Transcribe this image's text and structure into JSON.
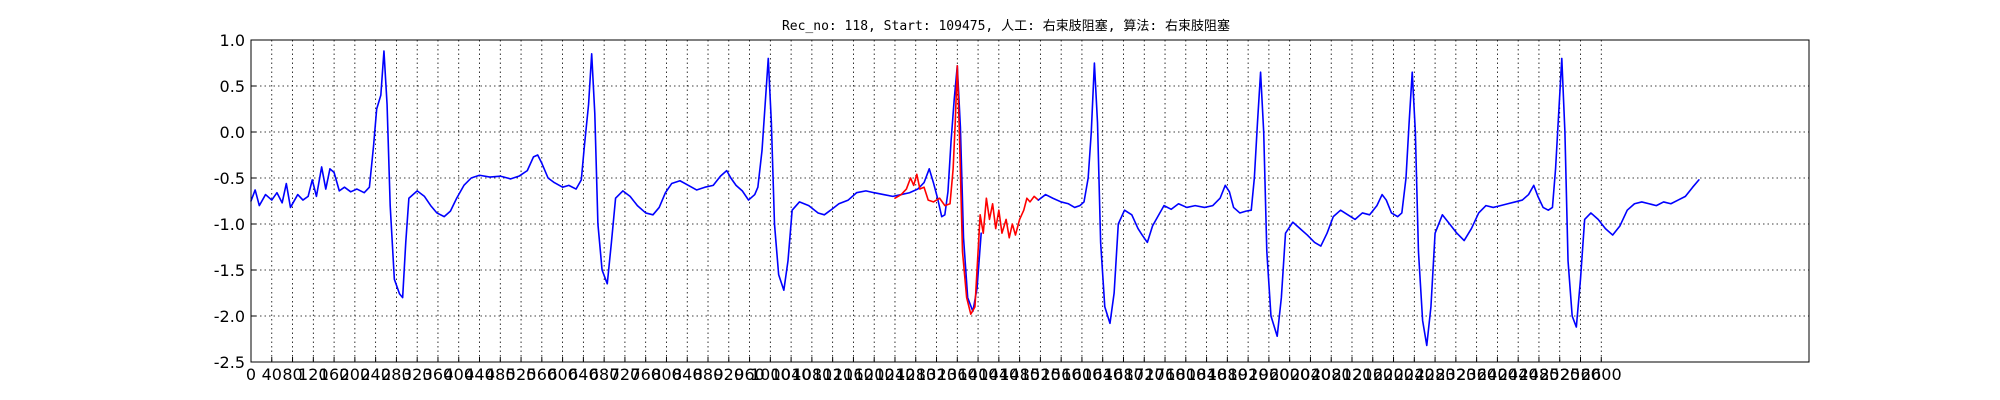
{
  "chart_data": {
    "type": "line",
    "title": "Rec_no: 118, Start: 109475, 人工: 右束肢阻塞, 算法: 右束肢阻塞",
    "xlabel": "",
    "ylabel": "",
    "xlim": [
      0,
      3000
    ],
    "ylim": [
      -2.5,
      1.0
    ],
    "x_ticks": [
      0,
      40,
      80,
      120,
      160,
      200,
      240,
      280,
      320,
      360,
      400,
      440,
      480,
      520,
      560,
      600,
      640,
      680,
      720,
      760,
      800,
      840,
      880,
      920,
      960,
      1000,
      1040,
      1080,
      1120,
      1160,
      1200,
      1240,
      1280,
      1320,
      1360,
      1400,
      1440,
      1480,
      1520,
      1560,
      1600,
      1640,
      1680,
      1720,
      1760,
      1800,
      1840,
      1880,
      1920,
      1960,
      2000,
      2040,
      2080,
      2120,
      2160,
      2200,
      2240,
      2280,
      2320,
      2360,
      2400,
      2440,
      2480,
      2520,
      2560,
      2600
    ],
    "y_ticks": [
      1.0,
      0.5,
      0.0,
      -0.5,
      -1.0,
      -1.5,
      -2.0,
      -2.5
    ],
    "grid": true,
    "colors": {
      "normal": "#0000ff",
      "highlight": "#ff0000"
    },
    "series": [
      {
        "values": [
          [
            0,
            -0.75
          ],
          [
            8,
            -0.63
          ],
          [
            16,
            -0.8
          ],
          [
            28,
            -0.68
          ],
          [
            40,
            -0.74
          ],
          [
            50,
            -0.66
          ],
          [
            60,
            -0.77
          ],
          [
            68,
            -0.56
          ],
          [
            76,
            -0.82
          ],
          [
            90,
            -0.68
          ],
          [
            100,
            -0.74
          ],
          [
            110,
            -0.7
          ],
          [
            118,
            -0.52
          ],
          [
            126,
            -0.7
          ],
          [
            136,
            -0.38
          ],
          [
            144,
            -0.62
          ],
          [
            152,
            -0.4
          ],
          [
            160,
            -0.44
          ],
          [
            170,
            -0.64
          ],
          [
            180,
            -0.6
          ],
          [
            192,
            -0.65
          ],
          [
            204,
            -0.62
          ],
          [
            218,
            -0.66
          ],
          [
            228,
            -0.6
          ],
          [
            236,
            -0.15
          ],
          [
            242,
            0.25
          ],
          [
            250,
            0.4
          ],
          [
            256,
            0.88
          ],
          [
            262,
            0.3
          ],
          [
            268,
            -0.8
          ],
          [
            276,
            -1.6
          ],
          [
            286,
            -1.76
          ],
          [
            292,
            -1.8
          ],
          [
            298,
            -1.2
          ],
          [
            304,
            -0.72
          ],
          [
            320,
            -0.64
          ],
          [
            334,
            -0.7
          ],
          [
            346,
            -0.8
          ],
          [
            358,
            -0.88
          ],
          [
            372,
            -0.92
          ],
          [
            384,
            -0.86
          ],
          [
            396,
            -0.72
          ],
          [
            410,
            -0.58
          ],
          [
            424,
            -0.5
          ],
          [
            440,
            -0.47
          ],
          [
            460,
            -0.49
          ],
          [
            480,
            -0.48
          ],
          [
            500,
            -0.51
          ],
          [
            516,
            -0.48
          ],
          [
            532,
            -0.42
          ],
          [
            544,
            -0.27
          ],
          [
            552,
            -0.25
          ],
          [
            560,
            -0.34
          ],
          [
            572,
            -0.5
          ],
          [
            584,
            -0.55
          ],
          [
            600,
            -0.6
          ],
          [
            612,
            -0.58
          ],
          [
            626,
            -0.62
          ],
          [
            636,
            -0.52
          ],
          [
            642,
            -0.15
          ],
          [
            650,
            0.3
          ],
          [
            656,
            0.85
          ],
          [
            662,
            0.2
          ],
          [
            668,
            -1.0
          ],
          [
            676,
            -1.5
          ],
          [
            686,
            -1.65
          ],
          [
            694,
            -1.2
          ],
          [
            702,
            -0.72
          ],
          [
            716,
            -0.64
          ],
          [
            730,
            -0.7
          ],
          [
            744,
            -0.8
          ],
          [
            760,
            -0.88
          ],
          [
            774,
            -0.9
          ],
          [
            786,
            -0.82
          ],
          [
            798,
            -0.66
          ],
          [
            810,
            -0.56
          ],
          [
            826,
            -0.53
          ],
          [
            842,
            -0.58
          ],
          [
            858,
            -0.63
          ],
          [
            874,
            -0.6
          ],
          [
            890,
            -0.58
          ],
          [
            904,
            -0.48
          ],
          [
            916,
            -0.42
          ],
          [
            924,
            -0.5
          ],
          [
            934,
            -0.58
          ],
          [
            946,
            -0.64
          ],
          [
            958,
            -0.74
          ],
          [
            970,
            -0.68
          ],
          [
            976,
            -0.6
          ],
          [
            984,
            -0.2
          ],
          [
            990,
            0.3
          ],
          [
            996,
            0.8
          ],
          [
            1002,
            0.1
          ],
          [
            1008,
            -1.0
          ],
          [
            1016,
            -1.55
          ],
          [
            1026,
            -1.72
          ],
          [
            1034,
            -1.4
          ],
          [
            1042,
            -0.85
          ],
          [
            1056,
            -0.76
          ],
          [
            1074,
            -0.8
          ],
          [
            1092,
            -0.88
          ],
          [
            1104,
            -0.9
          ],
          [
            1116,
            -0.85
          ],
          [
            1132,
            -0.78
          ],
          [
            1150,
            -0.74
          ],
          [
            1166,
            -0.66
          ],
          [
            1184,
            -0.64
          ],
          [
            1200,
            -0.66
          ],
          [
            1218,
            -0.68
          ],
          [
            1236,
            -0.7
          ],
          [
            1252,
            -0.68
          ],
          [
            1268,
            -0.66
          ],
          [
            1284,
            -0.62
          ],
          [
            1296,
            -0.55
          ],
          [
            1306,
            -0.4
          ],
          [
            1314,
            -0.55
          ],
          [
            1322,
            -0.72
          ],
          [
            1330,
            -0.92
          ],
          [
            1336,
            -0.9
          ],
          [
            1342,
            -0.65
          ],
          [
            1348,
            -0.1
          ],
          [
            1354,
            0.35
          ],
          [
            1360,
            0.72
          ],
          [
            1366,
            0.05
          ],
          [
            1372,
            -1.15
          ],
          [
            1380,
            -1.8
          ],
          [
            1390,
            -1.95
          ],
          [
            1398,
            -1.7
          ],
          [
            1406,
            -1.1
          ]
        ]
      },
      {
        "values": [
          [
            1240,
            -0.72
          ],
          [
            1252,
            -0.68
          ],
          [
            1262,
            -0.62
          ],
          [
            1270,
            -0.5
          ],
          [
            1276,
            -0.58
          ],
          [
            1282,
            -0.46
          ],
          [
            1288,
            -0.62
          ],
          [
            1296,
            -0.6
          ],
          [
            1304,
            -0.74
          ],
          [
            1314,
            -0.76
          ],
          [
            1326,
            -0.72
          ],
          [
            1336,
            -0.8
          ],
          [
            1346,
            -0.78
          ],
          [
            1352,
            -0.4
          ],
          [
            1356,
            0.1
          ],
          [
            1360,
            0.72
          ],
          [
            1364,
            0.0
          ],
          [
            1370,
            -1.3
          ],
          [
            1378,
            -1.8
          ],
          [
            1386,
            -1.98
          ],
          [
            1394,
            -1.9
          ],
          [
            1400,
            -1.3
          ],
          [
            1404,
            -0.9
          ],
          [
            1410,
            -1.1
          ],
          [
            1416,
            -0.72
          ],
          [
            1422,
            -0.95
          ],
          [
            1428,
            -0.78
          ],
          [
            1434,
            -1.05
          ],
          [
            1440,
            -0.85
          ],
          [
            1446,
            -1.1
          ],
          [
            1454,
            -0.95
          ],
          [
            1460,
            -1.15
          ],
          [
            1466,
            -1.0
          ],
          [
            1472,
            -1.12
          ],
          [
            1480,
            -0.95
          ],
          [
            1488,
            -0.85
          ],
          [
            1494,
            -0.72
          ],
          [
            1500,
            -0.76
          ],
          [
            1508,
            -0.7
          ],
          [
            1516,
            -0.74
          ]
        ]
      },
      {
        "values": [
          [
            1516,
            -0.74
          ],
          [
            1530,
            -0.68
          ],
          [
            1544,
            -0.72
          ],
          [
            1560,
            -0.76
          ],
          [
            1574,
            -0.78
          ],
          [
            1586,
            -0.82
          ],
          [
            1596,
            -0.8
          ],
          [
            1604,
            -0.76
          ],
          [
            1612,
            -0.5
          ],
          [
            1618,
            0.0
          ],
          [
            1624,
            0.75
          ],
          [
            1630,
            0.1
          ],
          [
            1636,
            -1.2
          ],
          [
            1644,
            -1.9
          ],
          [
            1654,
            -2.08
          ],
          [
            1662,
            -1.75
          ],
          [
            1670,
            -1.0
          ],
          [
            1682,
            -0.85
          ],
          [
            1696,
            -0.9
          ],
          [
            1708,
            -1.05
          ],
          [
            1716,
            -1.12
          ],
          [
            1726,
            -1.2
          ],
          [
            1736,
            -1.02
          ],
          [
            1746,
            -0.92
          ],
          [
            1758,
            -0.8
          ],
          [
            1772,
            -0.84
          ],
          [
            1786,
            -0.78
          ],
          [
            1802,
            -0.82
          ],
          [
            1818,
            -0.8
          ],
          [
            1836,
            -0.82
          ],
          [
            1852,
            -0.8
          ],
          [
            1866,
            -0.72
          ],
          [
            1876,
            -0.58
          ],
          [
            1884,
            -0.65
          ],
          [
            1892,
            -0.82
          ],
          [
            1904,
            -0.88
          ],
          [
            1916,
            -0.86
          ],
          [
            1926,
            -0.85
          ],
          [
            1932,
            -0.5
          ],
          [
            1938,
            0.1
          ],
          [
            1944,
            0.65
          ],
          [
            1950,
            0.0
          ],
          [
            1956,
            -1.3
          ],
          [
            1964,
            -2.0
          ],
          [
            1976,
            -2.22
          ],
          [
            1984,
            -1.8
          ],
          [
            1992,
            -1.1
          ],
          [
            2006,
            -0.98
          ],
          [
            2020,
            -1.05
          ],
          [
            2034,
            -1.12
          ],
          [
            2048,
            -1.2
          ],
          [
            2060,
            -1.24
          ],
          [
            2072,
            -1.1
          ],
          [
            2084,
            -0.92
          ],
          [
            2098,
            -0.85
          ],
          [
            2112,
            -0.9
          ],
          [
            2126,
            -0.95
          ],
          [
            2140,
            -0.88
          ],
          [
            2154,
            -0.9
          ],
          [
            2168,
            -0.8
          ],
          [
            2178,
            -0.68
          ],
          [
            2186,
            -0.74
          ],
          [
            2196,
            -0.88
          ],
          [
            2208,
            -0.92
          ],
          [
            2216,
            -0.88
          ],
          [
            2224,
            -0.5
          ],
          [
            2230,
            0.1
          ],
          [
            2236,
            0.65
          ],
          [
            2242,
            0.0
          ],
          [
            2248,
            -1.3
          ],
          [
            2256,
            -2.05
          ],
          [
            2264,
            -2.32
          ],
          [
            2272,
            -1.9
          ],
          [
            2280,
            -1.1
          ],
          [
            2294,
            -0.9
          ],
          [
            2308,
            -1.0
          ],
          [
            2322,
            -1.1
          ],
          [
            2336,
            -1.18
          ],
          [
            2350,
            -1.05
          ],
          [
            2364,
            -0.88
          ],
          [
            2378,
            -0.8
          ],
          [
            2392,
            -0.82
          ],
          [
            2406,
            -0.8
          ],
          [
            2420,
            -0.78
          ],
          [
            2434,
            -0.76
          ],
          [
            2448,
            -0.74
          ],
          [
            2460,
            -0.68
          ],
          [
            2470,
            -0.58
          ],
          [
            2478,
            -0.7
          ],
          [
            2488,
            -0.82
          ],
          [
            2498,
            -0.85
          ],
          [
            2506,
            -0.82
          ],
          [
            2512,
            -0.4
          ],
          [
            2518,
            0.2
          ],
          [
            2524,
            0.8
          ],
          [
            2530,
            0.0
          ],
          [
            2536,
            -1.4
          ],
          [
            2544,
            -2.0
          ],
          [
            2552,
            -2.12
          ],
          [
            2560,
            -1.6
          ],
          [
            2568,
            -0.95
          ],
          [
            2580,
            -0.88
          ],
          [
            2594,
            -0.95
          ],
          [
            2608,
            -1.05
          ],
          [
            2622,
            -1.12
          ],
          [
            2636,
            -1.02
          ],
          [
            2650,
            -0.85
          ],
          [
            2664,
            -0.78
          ],
          [
            2678,
            -0.76
          ],
          [
            2692,
            -0.78
          ],
          [
            2706,
            -0.8
          ],
          [
            2720,
            -0.76
          ],
          [
            2734,
            -0.78
          ],
          [
            2748,
            -0.74
          ],
          [
            2762,
            -0.7
          ],
          [
            2776,
            -0.6
          ],
          [
            2788,
            -0.52
          ]
        ]
      }
    ],
    "series_colors": [
      "normal",
      "highlight",
      "normal"
    ]
  }
}
